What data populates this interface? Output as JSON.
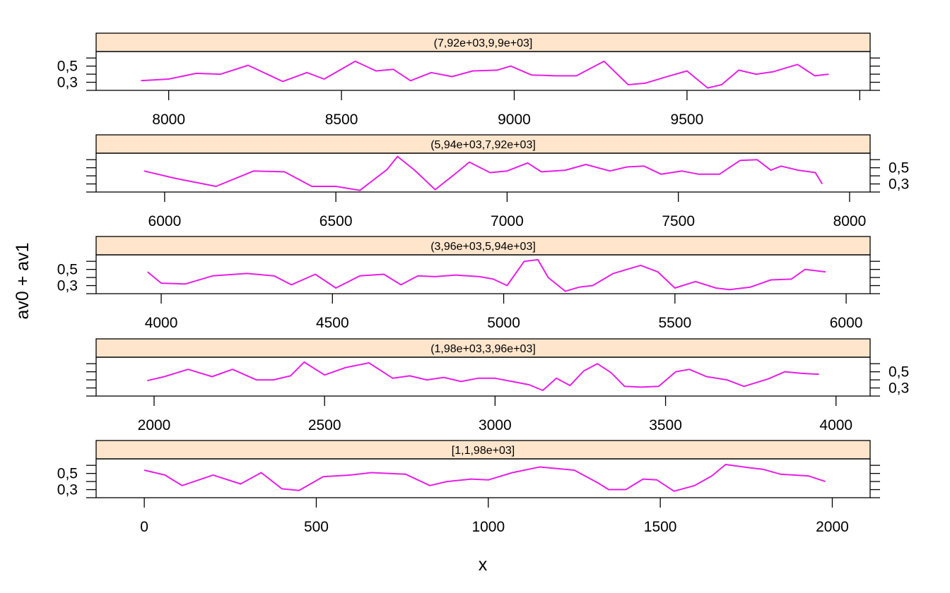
{
  "colors": {
    "line": "#e61ee6",
    "strip_fill": "#ffe5cc",
    "frame": "#000000"
  },
  "chart_data": {
    "type": "line",
    "layout": "trellis",
    "xlabel": "x",
    "ylabel": "av0 + av1",
    "ylim": [
      0.2,
      0.68
    ],
    "y_ticks": [
      0.2,
      0.3,
      0.4,
      0.5,
      0.6
    ],
    "y_tick_labels": [
      "0,3",
      "0,5"
    ],
    "grid": false,
    "legend": "none",
    "panels": [
      {
        "strip_label": "(7,92e+03,9,9e+03]",
        "y_axis_side": "left",
        "xlim": [
          7790,
          10030
        ],
        "x_ticks": [
          8000,
          8500,
          9000,
          9500,
          10000
        ],
        "x_tick_labels": [
          "8000",
          "8500",
          "9000",
          "9500"
        ],
        "x": [
          7920,
          8000,
          8080,
          8150,
          8230,
          8330,
          8400,
          8450,
          8540,
          8600,
          8650,
          8700,
          8760,
          8820,
          8880,
          8950,
          8990,
          9050,
          9120,
          9180,
          9260,
          9330,
          9380,
          9450,
          9500,
          9560,
          9600,
          9650,
          9700,
          9750,
          9820,
          9870,
          9910
        ],
        "y": [
          0.32,
          0.34,
          0.41,
          0.4,
          0.51,
          0.31,
          0.42,
          0.34,
          0.56,
          0.44,
          0.46,
          0.32,
          0.42,
          0.37,
          0.44,
          0.45,
          0.5,
          0.39,
          0.38,
          0.38,
          0.56,
          0.27,
          0.29,
          0.38,
          0.44,
          0.23,
          0.27,
          0.45,
          0.4,
          0.43,
          0.52,
          0.38,
          0.4
        ]
      },
      {
        "strip_label": "(5,94e+03,7,92e+03]",
        "y_axis_side": "right",
        "xlim": [
          5800,
          8060
        ],
        "x_ticks": [
          6000,
          6500,
          7000,
          7500,
          8000
        ],
        "x_tick_labels": [
          "6000",
          "6500",
          "7000",
          "7500",
          "8000"
        ],
        "x": [
          5940,
          6030,
          6150,
          6260,
          6350,
          6430,
          6500,
          6570,
          6650,
          6680,
          6730,
          6790,
          6850,
          6890,
          6950,
          7000,
          7060,
          7100,
          7170,
          7230,
          7300,
          7350,
          7400,
          7450,
          7510,
          7560,
          7620,
          7680,
          7730,
          7770,
          7800,
          7850,
          7900,
          7920
        ],
        "y": [
          0.46,
          0.37,
          0.27,
          0.46,
          0.45,
          0.27,
          0.27,
          0.22,
          0.48,
          0.64,
          0.47,
          0.23,
          0.43,
          0.57,
          0.44,
          0.46,
          0.56,
          0.45,
          0.47,
          0.54,
          0.46,
          0.51,
          0.52,
          0.42,
          0.46,
          0.42,
          0.42,
          0.59,
          0.6,
          0.47,
          0.52,
          0.47,
          0.44,
          0.3
        ]
      },
      {
        "strip_label": "(3,96e+03,5,94e+03]",
        "y_axis_side": "left",
        "xlim": [
          3810,
          6070
        ],
        "x_ticks": [
          4000,
          4500,
          5000,
          5500,
          6000
        ],
        "x_tick_labels": [
          "4000",
          "4500",
          "5000",
          "5500",
          "6000"
        ],
        "x": [
          3960,
          4000,
          4070,
          4150,
          4250,
          4330,
          4380,
          4450,
          4510,
          4580,
          4650,
          4700,
          4750,
          4800,
          4860,
          4930,
          4970,
          5010,
          5060,
          5100,
          5130,
          5180,
          5220,
          5260,
          5320,
          5400,
          5450,
          5500,
          5560,
          5620,
          5660,
          5720,
          5780,
          5840,
          5880,
          5940
        ],
        "y": [
          0.47,
          0.33,
          0.32,
          0.42,
          0.45,
          0.42,
          0.31,
          0.44,
          0.27,
          0.42,
          0.44,
          0.31,
          0.42,
          0.41,
          0.43,
          0.41,
          0.38,
          0.3,
          0.6,
          0.62,
          0.4,
          0.23,
          0.28,
          0.3,
          0.45,
          0.55,
          0.47,
          0.27,
          0.35,
          0.27,
          0.25,
          0.28,
          0.37,
          0.38,
          0.5,
          0.47
        ]
      },
      {
        "strip_label": "(1,98e+03,3,96e+03]",
        "y_axis_side": "right",
        "xlim": [
          1830,
          4100
        ],
        "x_ticks": [
          2000,
          2500,
          3000,
          3500,
          4000
        ],
        "x_tick_labels": [
          "2000",
          "2500",
          "3000",
          "3500",
          "4000"
        ],
        "x": [
          1980,
          2030,
          2100,
          2170,
          2230,
          2300,
          2350,
          2400,
          2440,
          2500,
          2560,
          2630,
          2700,
          2750,
          2800,
          2850,
          2900,
          2950,
          3000,
          3050,
          3100,
          3140,
          3180,
          3220,
          3260,
          3300,
          3340,
          3380,
          3430,
          3480,
          3530,
          3570,
          3620,
          3680,
          3730,
          3800,
          3850,
          3900,
          3950
        ],
        "y": [
          0.39,
          0.44,
          0.53,
          0.44,
          0.53,
          0.4,
          0.4,
          0.45,
          0.62,
          0.46,
          0.55,
          0.61,
          0.42,
          0.45,
          0.4,
          0.43,
          0.38,
          0.42,
          0.42,
          0.38,
          0.34,
          0.27,
          0.42,
          0.33,
          0.51,
          0.6,
          0.49,
          0.32,
          0.31,
          0.32,
          0.5,
          0.53,
          0.44,
          0.4,
          0.32,
          0.41,
          0.5,
          0.48,
          0.47
        ]
      },
      {
        "strip_label": "[1,1,98e+03]",
        "y_axis_side": "left",
        "xlim": [
          -140,
          2110
        ],
        "x_ticks": [
          0,
          500,
          1000,
          1500,
          2000
        ],
        "x_tick_labels": [
          "0",
          "500",
          "1000",
          "1500",
          "2000"
        ],
        "x": [
          0,
          60,
          110,
          200,
          280,
          340,
          400,
          450,
          520,
          600,
          660,
          760,
          830,
          880,
          950,
          1000,
          1070,
          1150,
          1250,
          1320,
          1350,
          1400,
          1450,
          1490,
          1540,
          1600,
          1650,
          1690,
          1760,
          1800,
          1850,
          1930,
          1980
        ],
        "y": [
          0.54,
          0.48,
          0.35,
          0.48,
          0.37,
          0.51,
          0.31,
          0.29,
          0.46,
          0.48,
          0.51,
          0.49,
          0.35,
          0.4,
          0.43,
          0.42,
          0.51,
          0.58,
          0.54,
          0.38,
          0.3,
          0.3,
          0.43,
          0.42,
          0.28,
          0.35,
          0.47,
          0.61,
          0.57,
          0.55,
          0.49,
          0.47,
          0.4
        ]
      }
    ]
  }
}
